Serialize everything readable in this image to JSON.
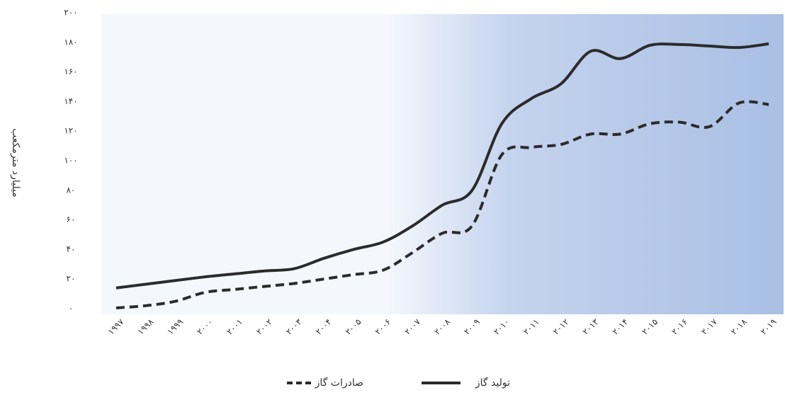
{
  "chart_data": {
    "type": "line",
    "y_label": "میلیارد مترمکعب",
    "categories": [
      "۱۹۹۷",
      "۱۹۹۸",
      "۱۹۹۹",
      "۲۰۰۰",
      "۲۰۰۱",
      "۲۰۰۲",
      "۲۰۰۳",
      "۲۰۰۴",
      "۲۰۰۵",
      "۲۰۰۶",
      "۲۰۰۷",
      "۲۰۰۸",
      "۲۰۰۹",
      "۲۰۱۰",
      "۲۰۱۱",
      "۲۰۱۲",
      "۲۰۱۳",
      "۲۰۱۴",
      "۲۰۱۵",
      "۲۰۱۶",
      "۲۰۱۷",
      "۲۰۱۸",
      "۲۰۱۹"
    ],
    "series": [
      {
        "name": "تولید گاز",
        "color": "#2b2b2b",
        "dash": false,
        "values": [
          14,
          16.5,
          19,
          21.5,
          23.5,
          25.5,
          27,
          34,
          40,
          45,
          56,
          70,
          80,
          125,
          142,
          152,
          174,
          169,
          178,
          178.5,
          177.5,
          176.5,
          179
        ]
      },
      {
        "name": "صادرات گاز",
        "color": "#2b2b2b",
        "dash": true,
        "values": [
          0.5,
          2,
          5,
          11,
          13,
          15,
          17,
          20,
          23,
          26,
          38,
          51,
          56,
          104,
          109,
          111,
          118,
          118,
          125,
          126,
          123,
          139,
          138
        ]
      }
    ],
    "ylim": [
      0,
      200
    ],
    "yticks": [
      {
        "value": 0,
        "label": "۰"
      },
      {
        "value": 20,
        "label": "۲۰"
      },
      {
        "value": 40,
        "label": "۴۰"
      },
      {
        "value": 60,
        "label": "۶۰"
      },
      {
        "value": 80,
        "label": "۸۰"
      },
      {
        "value": 100,
        "label": "۱۰۰"
      },
      {
        "value": 120,
        "label": "۱۲۰"
      },
      {
        "value": 140,
        "label": "۱۴۰"
      },
      {
        "value": 160,
        "label": "۱۶۰"
      },
      {
        "value": 180,
        "label": "۱۸۰"
      },
      {
        "value": 200,
        "label": "۲۰۰"
      }
    ]
  }
}
